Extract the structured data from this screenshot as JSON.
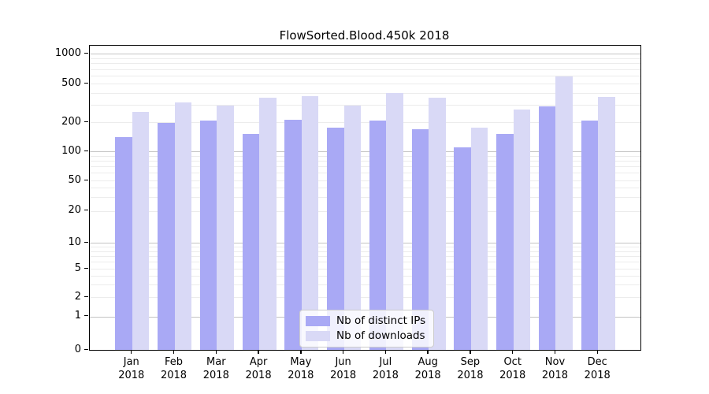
{
  "title": "FlowSorted.Blood.450k 2018",
  "colors": {
    "distinct_ips_bar": "#a9a9f5",
    "downloads_bar": "#d9d9f6",
    "major_grid": "#c4c4c4",
    "minor_grid": "#ececec",
    "axis": "#000000"
  },
  "legend": {
    "items": [
      {
        "label": "Nb of distinct IPs",
        "color": "#a9a9f5"
      },
      {
        "label": "Nb of downloads",
        "color": "#d9d9f6"
      }
    ]
  },
  "chart_data": {
    "type": "bar",
    "title": "FlowSorted.Blood.450k 2018",
    "categories": [
      "Jan 2018",
      "Feb 2018",
      "Mar 2018",
      "Apr 2018",
      "May 2018",
      "Jun 2018",
      "Jul 2018",
      "Aug 2018",
      "Sep 2018",
      "Oct 2018",
      "Nov 2018",
      "Dec 2018"
    ],
    "months": [
      "Jan",
      "Feb",
      "Mar",
      "Apr",
      "May",
      "Jun",
      "Jul",
      "Aug",
      "Sep",
      "Oct",
      "Nov",
      "Dec"
    ],
    "year": "2018",
    "series": [
      {
        "name": "Nb of distinct IPs",
        "color": "#a9a9f5",
        "values": [
          141,
          196,
          209,
          151,
          213,
          177,
          207,
          170,
          110,
          151,
          291,
          209
        ]
      },
      {
        "name": "Nb of downloads",
        "color": "#d9d9f6",
        "values": [
          257,
          318,
          295,
          356,
          372,
          299,
          403,
          356,
          176,
          269,
          587,
          367
        ]
      }
    ],
    "xlabel": "",
    "ylabel": "",
    "yscale": "symlog",
    "yticks": [
      0,
      1,
      2,
      5,
      10,
      20,
      50,
      100,
      200,
      500,
      1000
    ],
    "ylim": [
      0,
      1250
    ],
    "grid": "horizontal, major lines at powers of 10, minor lines at intermediate values",
    "legend_position": "lower center"
  }
}
